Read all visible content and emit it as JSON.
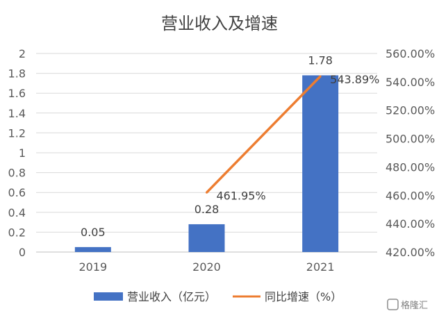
{
  "chart_data": {
    "type": "bar",
    "title": "营业收入及增速",
    "categories": [
      "2019",
      "2020",
      "2021"
    ],
    "series": [
      {
        "name": "营业收入（亿元）",
        "type": "bar",
        "axis": "left",
        "color": "#4472C4",
        "values": [
          0.05,
          0.28,
          1.78
        ],
        "labels": [
          "0.05",
          "0.28",
          "1.78"
        ]
      },
      {
        "name": "同比增速（%）",
        "type": "line",
        "axis": "right",
        "color": "#ED7D31",
        "values": [
          null,
          461.95,
          543.89
        ],
        "labels": [
          "",
          "461.95%",
          "543.89%"
        ]
      }
    ],
    "y_left": {
      "ylim": [
        0,
        2
      ],
      "ticks": [
        "0",
        "0.2",
        "0.4",
        "0.6",
        "0.8",
        "1",
        "1.2",
        "1.4",
        "1.6",
        "1.8",
        "2"
      ]
    },
    "y_right": {
      "ylim": [
        420,
        560
      ],
      "ticks": [
        "420.00%",
        "440.00%",
        "460.00%",
        "480.00%",
        "500.00%",
        "520.00%",
        "540.00%",
        "560.00%"
      ]
    },
    "grid": true,
    "legend": "bottom"
  },
  "watermark": {
    "text": "格隆汇"
  }
}
